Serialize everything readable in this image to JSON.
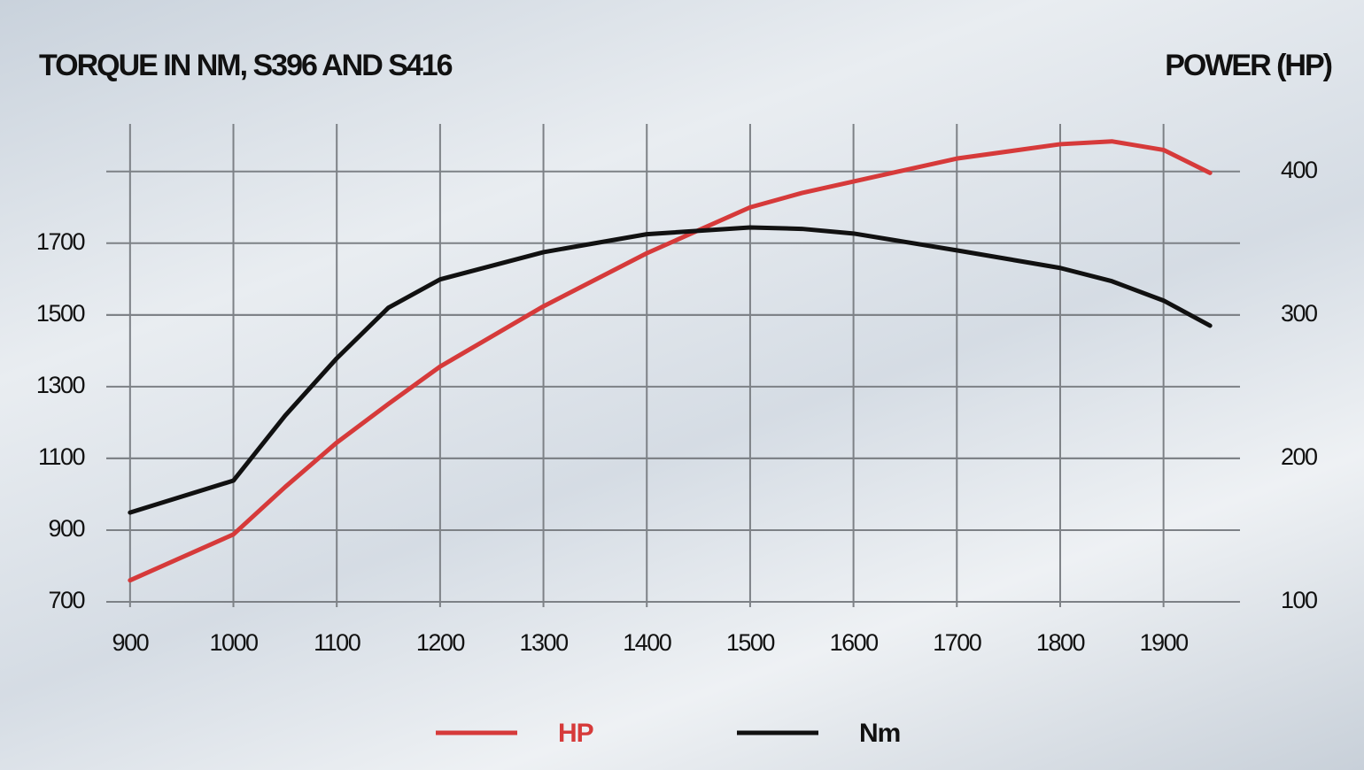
{
  "chart_data": {
    "type": "line",
    "title": "TORQUE IN NM, S396 AND S416",
    "y2label": "POWER (HP)",
    "x": [
      900,
      1000,
      1050,
      1100,
      1150,
      1200,
      1300,
      1400,
      1500,
      1550,
      1600,
      1700,
      1800,
      1850,
      1900,
      1945
    ],
    "series": [
      {
        "name": "HP",
        "color": "#d63a3a",
        "axis": "y2",
        "values": [
          115,
          147,
          180,
          211,
          238,
          264,
          306,
          343,
          375,
          385,
          393,
          409,
          419,
          421,
          415,
          399
        ]
      },
      {
        "name": "Nm",
        "color": "#111111",
        "values": [
          949,
          1038,
          1219,
          1379,
          1520,
          1599,
          1675,
          1725,
          1744,
          1740,
          1727,
          1680,
          1631,
          1594,
          1540,
          1470
        ]
      }
    ],
    "xlim": [
      877,
      1974
    ],
    "xticks": [
      900,
      1000,
      1100,
      1200,
      1300,
      1400,
      1500,
      1600,
      1700,
      1800,
      1900
    ],
    "ylim": [
      700,
      2040
    ],
    "yticks": [
      700,
      900,
      1100,
      1300,
      1500,
      1700
    ],
    "y2lim": [
      100,
      435
    ],
    "y2ticks": [
      100,
      200,
      300,
      400
    ],
    "grid": true
  }
}
